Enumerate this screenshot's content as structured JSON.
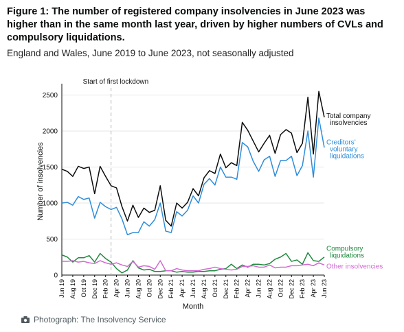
{
  "header": {
    "title": "Figure 1: The number of registered company insolvencies in June 2023 was higher than in the same month last year, driven by higher numbers of CVLs and compulsory liquidations.",
    "subtitle": "England and Wales, June 2019 to June 2023, not seasonally adjusted"
  },
  "caption": {
    "icon": "camera-icon",
    "text": "Photograph: The Insolvency Service"
  },
  "chart_data": {
    "type": "line",
    "xlabel": "Month",
    "ylabel": "Number of insolvencies",
    "ylim": [
      0,
      2600
    ],
    "yticks": [
      0,
      500,
      1000,
      1500,
      2000,
      2500
    ],
    "grid": "horizontal",
    "legend": "inline labels at right end of lines",
    "x": [
      "Jun 19",
      "Jul 19",
      "Aug 19",
      "Sep 19",
      "Oct 19",
      "Nov 19",
      "Dec 19",
      "Jan 20",
      "Feb 20",
      "Mar 20",
      "Apr 20",
      "May 20",
      "Jun 20",
      "Jul 20",
      "Aug 20",
      "Sep 20",
      "Oct 20",
      "Nov 20",
      "Dec 20",
      "Jan 21",
      "Feb 21",
      "Mar 21",
      "Apr 21",
      "May 21",
      "Jun 21",
      "Jul 21",
      "Aug 21",
      "Sep 21",
      "Oct 21",
      "Nov 21",
      "Dec 21",
      "Jan 22",
      "Feb 22",
      "Mar 22",
      "Apr 22",
      "May 22",
      "Jun 22",
      "Jul 22",
      "Aug 22",
      "Sep 22",
      "Oct 22",
      "Nov 22",
      "Dec 22",
      "Jan 23",
      "Feb 23",
      "Mar 23",
      "Apr 23",
      "May 23",
      "Jun 23"
    ],
    "tick_labels": [
      "Jun 19",
      "Aug 19",
      "Oct 19",
      "Dec 19",
      "Feb 20",
      "Apr 20",
      "Jun 20",
      "Aug 20",
      "Oct 20",
      "Dec 20",
      "Feb 21",
      "Apr 21",
      "Jun 21",
      "Aug 21",
      "Oct 21",
      "Dec 21",
      "Feb 22",
      "Apr 22",
      "Jun 22",
      "Aug 22",
      "Oct 22",
      "Dec 22",
      "Feb 23",
      "Apr 23",
      "Jun 23"
    ],
    "annotation": {
      "label": "Start of first lockdown",
      "x": "Mar 20"
    },
    "series": [
      {
        "name": "Total company insolvencies",
        "color": "#0b0c0c",
        "values": [
          1470,
          1440,
          1370,
          1510,
          1480,
          1500,
          1130,
          1510,
          1370,
          1240,
          1210,
          950,
          750,
          970,
          800,
          930,
          870,
          900,
          1240,
          760,
          680,
          1000,
          930,
          1010,
          1200,
          1100,
          1350,
          1450,
          1410,
          1680,
          1490,
          1560,
          1520,
          2120,
          2010,
          1860,
          1710,
          1830,
          1940,
          1690,
          1950,
          2020,
          1970,
          1700,
          1830,
          2470,
          1680,
          2550,
          2190
        ]
      },
      {
        "name": "Creditors' voluntary liquidations",
        "color": "#2e8ddb",
        "values": [
          1000,
          1010,
          970,
          1090,
          1050,
          1070,
          790,
          1010,
          950,
          910,
          940,
          780,
          560,
          590,
          590,
          740,
          680,
          770,
          1000,
          610,
          590,
          880,
          820,
          900,
          1100,
          1000,
          1260,
          1340,
          1250,
          1500,
          1360,
          1360,
          1330,
          1840,
          1780,
          1580,
          1440,
          1600,
          1650,
          1370,
          1590,
          1590,
          1650,
          1380,
          1520,
          2000,
          1360,
          2180,
          1770
        ]
      },
      {
        "name": "Compulsory liquidations",
        "color": "#1f8a3e",
        "values": [
          280,
          250,
          180,
          240,
          240,
          270,
          180,
          300,
          230,
          180,
          90,
          30,
          70,
          200,
          100,
          70,
          80,
          50,
          50,
          60,
          60,
          40,
          50,
          40,
          40,
          50,
          50,
          60,
          60,
          80,
          90,
          150,
          90,
          140,
          110,
          150,
          150,
          140,
          160,
          220,
          250,
          300,
          190,
          210,
          150,
          310,
          200,
          190,
          250
        ]
      },
      {
        "name": "Other insolvencies",
        "color": "#d16ad1",
        "values": [
          190,
          190,
          200,
          180,
          190,
          170,
          160,
          200,
          170,
          150,
          170,
          140,
          120,
          190,
          110,
          130,
          120,
          80,
          200,
          60,
          60,
          90,
          70,
          60,
          60,
          60,
          80,
          90,
          110,
          90,
          80,
          70,
          80,
          120,
          120,
          130,
          110,
          110,
          140,
          100,
          110,
          110,
          130,
          130,
          140,
          150,
          130,
          170,
          140
        ]
      }
    ]
  }
}
